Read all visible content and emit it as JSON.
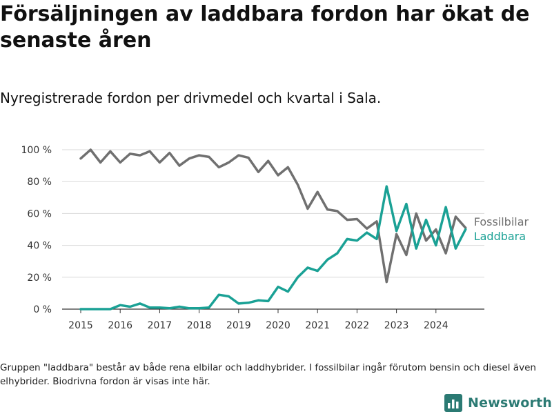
{
  "title": "Försäljningen av laddbara fordon har ökat de senaste åren",
  "subtitle": "Nyregistrerade fordon per drivmedel och kvartal i Sala.",
  "footnote": "Gruppen \"laddbara\" består av både rena elbilar och laddhybrider. I fossilbilar ingår förutom bensin och diesel även elhybrider. Biodrivna fordon är visas inte här.",
  "brand": {
    "name": "Newsworthy",
    "logo_icon": "bar-chart-logo-icon",
    "color": "#2b7a73"
  },
  "chart_data": {
    "type": "line",
    "title": "",
    "xlabel": "",
    "ylabel": "",
    "x_ticks": [
      "2015",
      "2016",
      "2017",
      "2018",
      "2019",
      "2020",
      "2021",
      "2022",
      "2023",
      "2024"
    ],
    "x_start_year": 2015,
    "y_ticks": [
      "0 %",
      "20 %",
      "40 %",
      "60 %",
      "80 %",
      "100 %"
    ],
    "ylim": [
      0,
      100
    ],
    "grid": true,
    "legend": "direct labels at line ends (right)",
    "x": [
      "2015-Q1",
      "2015-Q2",
      "2015-Q3",
      "2015-Q4",
      "2016-Q1",
      "2016-Q2",
      "2016-Q3",
      "2016-Q4",
      "2017-Q1",
      "2017-Q2",
      "2017-Q3",
      "2017-Q4",
      "2018-Q1",
      "2018-Q2",
      "2018-Q3",
      "2018-Q4",
      "2019-Q1",
      "2019-Q2",
      "2019-Q3",
      "2019-Q4",
      "2020-Q1",
      "2020-Q2",
      "2020-Q3",
      "2020-Q4",
      "2021-Q1",
      "2021-Q2",
      "2021-Q3",
      "2021-Q4",
      "2022-Q1",
      "2022-Q2",
      "2022-Q3",
      "2022-Q4",
      "2023-Q1",
      "2023-Q2",
      "2023-Q3",
      "2023-Q4",
      "2024-Q1",
      "2024-Q2",
      "2024-Q3",
      "2024-Q4"
    ],
    "series": [
      {
        "name": "Fossilbilar",
        "color": "#707070",
        "values": [
          94.5,
          100,
          92,
          99,
          92,
          97.5,
          96.5,
          99,
          92,
          98,
          90,
          94.5,
          96.5,
          95.5,
          89,
          92,
          96.5,
          95,
          86,
          93,
          84,
          89,
          78,
          63,
          73.5,
          62.5,
          61.5,
          56,
          56.5,
          50.5,
          55,
          17,
          47,
          34,
          60,
          43,
          50,
          35,
          58,
          51
        ]
      },
      {
        "name": "Laddbara",
        "color": "#1aa195",
        "values": [
          0,
          0,
          0,
          0,
          2.5,
          1.5,
          3.5,
          1,
          1,
          0.5,
          1.5,
          0.5,
          0.5,
          1,
          9,
          8,
          3.5,
          4,
          5.5,
          5,
          14,
          11,
          20,
          26,
          24,
          31,
          35,
          44,
          43,
          48,
          44,
          77,
          49,
          66,
          38,
          56,
          40,
          64,
          38,
          50
        ]
      }
    ]
  }
}
